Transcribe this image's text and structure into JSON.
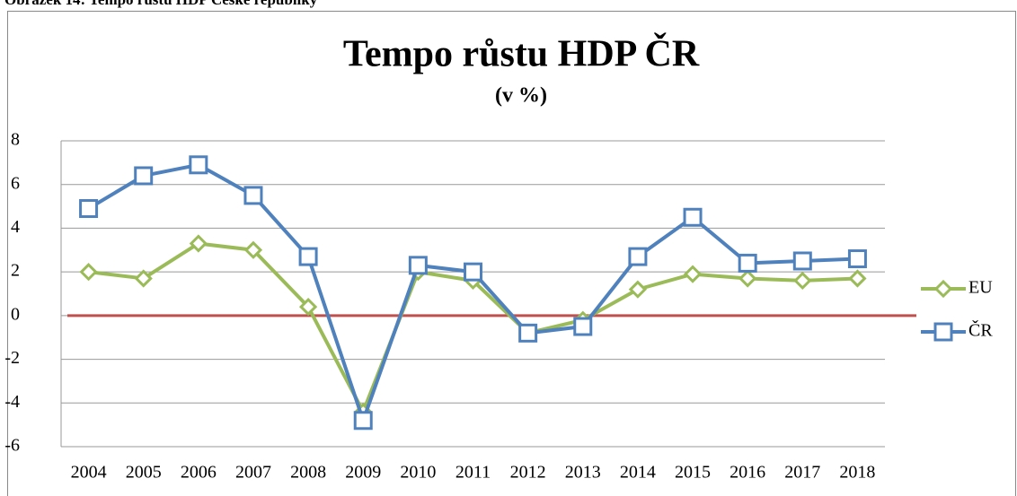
{
  "caption": "Obrázek 14: Tempo růstu HDP České republiky",
  "chart_data": {
    "type": "line",
    "title": "Tempo růstu HDP ČR",
    "subtitle": "(v %)",
    "categories": [
      "2004",
      "2005",
      "2006",
      "2007",
      "2008",
      "2009",
      "2010",
      "2011",
      "2012",
      "2013",
      "2014",
      "2015",
      "2016",
      "2017",
      "2018"
    ],
    "series": [
      {
        "name": "EU",
        "color": "#9bbb59",
        "marker": "diamond",
        "values": [
          2.0,
          1.7,
          3.3,
          3.0,
          0.4,
          -4.4,
          2.0,
          1.6,
          -0.8,
          -0.2,
          1.2,
          1.9,
          1.7,
          1.6,
          1.7
        ]
      },
      {
        "name": "ČR",
        "color": "#4f81bd",
        "marker": "square",
        "values": [
          4.9,
          6.4,
          6.9,
          5.5,
          2.7,
          -4.8,
          2.3,
          2.0,
          -0.8,
          -0.5,
          2.7,
          4.5,
          2.4,
          2.5,
          2.6
        ]
      }
    ],
    "reference_line": {
      "value": 0,
      "color": "#c0504d"
    },
    "ylim": [
      -6,
      8
    ],
    "yticks": [
      -6,
      -4,
      -2,
      0,
      2,
      4,
      6,
      8
    ],
    "grid": true,
    "legend": "right"
  }
}
